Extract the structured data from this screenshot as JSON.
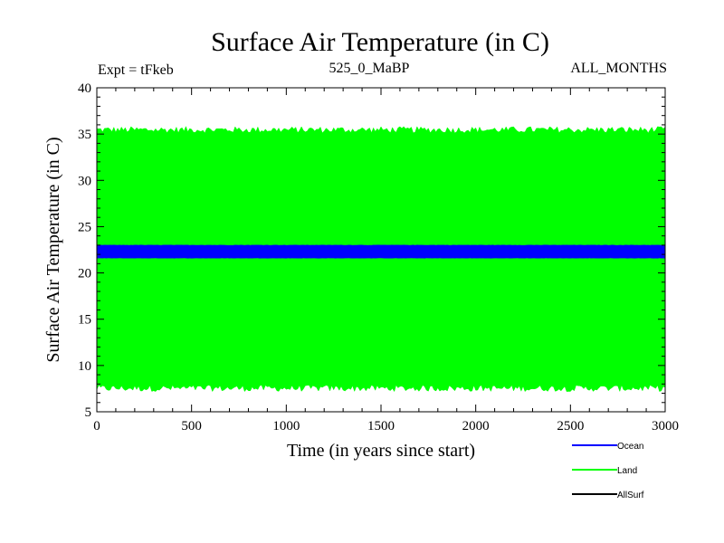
{
  "chart_data": {
    "type": "line",
    "title": "Surface Air Temperature (in C)",
    "subtitle_left": "Expt = tFkeb",
    "subtitle_center": "525_0_MaBP",
    "subtitle_right": "ALL_MONTHS",
    "xlabel": "Time (in years since start)",
    "ylabel": "Surface Air Temperature (in C)",
    "xlim": [
      0,
      3000
    ],
    "ylim": [
      5,
      40
    ],
    "xticks": [
      "0",
      "500",
      "1000",
      "1500",
      "2000",
      "2500",
      "3000"
    ],
    "yticks": [
      "5",
      "10",
      "15",
      "20",
      "25",
      "30",
      "35",
      "40"
    ],
    "grid": false,
    "legend_position": "below-right",
    "series": [
      {
        "name": "Ocean",
        "color": "#0000ff",
        "x_range": [
          0,
          3000
        ],
        "band": [
          21.6,
          23.0
        ],
        "mean": 22.3
      },
      {
        "name": "Land",
        "color": "#00ff00",
        "x_range": [
          0,
          3000
        ],
        "band": [
          7.5,
          35.5
        ],
        "mean": 21.5
      },
      {
        "name": "AllSurf",
        "color": "#000000",
        "x_range": [
          0,
          3000
        ],
        "band": null,
        "mean": null
      }
    ]
  }
}
